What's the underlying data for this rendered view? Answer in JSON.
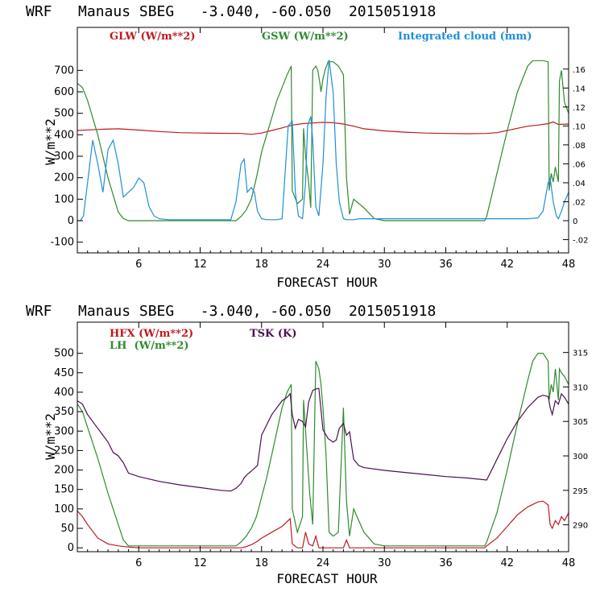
{
  "chart_data": [
    {
      "type": "line",
      "title": "WRF   Manaus SBEG   -3.040, -60.050  2015051918",
      "xlabel": "FORECAST HOUR",
      "ylabel": "W/m**2",
      "xlim": [
        0,
        48
      ],
      "ylim": [
        -150,
        900
      ],
      "y2lim": [
        -0.034,
        0.204
      ],
      "x_ticks": [
        "6",
        "12",
        "18",
        "24",
        "30",
        "36",
        "42",
        "48"
      ],
      "y_ticks": [
        "-100",
        "0",
        "100",
        "200",
        "300",
        "400",
        "500",
        "600",
        "700"
      ],
      "y2_ticks": [
        "-.02",
        "0",
        ".02",
        ".04",
        ".06",
        ".08",
        ".10",
        ".12",
        ".14",
        ".16"
      ],
      "legend": [
        {
          "label": "GLW (W/m**2)",
          "color": "#c0181f"
        },
        {
          "label": "GSW (W/m**2)",
          "color": "#2e8b2e"
        },
        {
          "label": "Integrated cloud (mm)",
          "color": "#1e8fd8"
        }
      ],
      "series": [
        {
          "name": "GLW",
          "axis": "left",
          "color": "#c0181f",
          "x": [
            0,
            2,
            4,
            6,
            8,
            10,
            12,
            14,
            16,
            17,
            18,
            19,
            20,
            21,
            22,
            23,
            24,
            25,
            26,
            27,
            28,
            30,
            32,
            34,
            36,
            38,
            40,
            41,
            42,
            43,
            44,
            45,
            46,
            46.5,
            47,
            48
          ],
          "y": [
            420,
            425,
            428,
            422,
            415,
            410,
            408,
            407,
            406,
            402,
            408,
            420,
            432,
            445,
            452,
            455,
            458,
            456,
            450,
            440,
            428,
            418,
            412,
            408,
            406,
            405,
            406,
            410,
            420,
            430,
            440,
            445,
            452,
            460,
            448,
            450
          ]
        },
        {
          "name": "GSW",
          "axis": "left",
          "color": "#2e8b2e",
          "x": [
            0,
            0.5,
            1,
            2,
            3,
            4,
            4.5,
            5,
            6,
            10,
            15,
            15.5,
            16,
            16.5,
            17,
            17.5,
            18,
            18.5,
            19,
            19.5,
            20,
            20.5,
            20.9,
            21,
            21.5,
            22,
            22.1,
            22.3,
            22.6,
            22.8,
            23,
            23.3,
            23.5,
            23.7,
            23.8,
            24,
            24.2,
            24.5,
            25,
            25.5,
            26,
            26.3,
            26.6,
            27,
            28,
            29,
            30,
            35,
            39.8,
            40,
            41,
            42,
            43,
            44,
            44.5,
            45,
            45.5,
            46,
            46.1,
            46.3,
            46.5,
            46.7,
            47,
            47.1,
            47.3,
            47.6,
            48
          ],
          "y": [
            640,
            620,
            560,
            400,
            200,
            40,
            10,
            0,
            0,
            0,
            0,
            0,
            20,
            50,
            100,
            200,
            320,
            400,
            480,
            560,
            620,
            680,
            720,
            140,
            80,
            100,
            430,
            300,
            180,
            60,
            700,
            720,
            700,
            640,
            600,
            660,
            700,
            740,
            740,
            720,
            680,
            200,
            30,
            100,
            60,
            10,
            0,
            0,
            0,
            20,
            220,
            420,
            600,
            720,
            745,
            745,
            745,
            740,
            140,
            220,
            180,
            250,
            180,
            650,
            700,
            550,
            500
          ]
        },
        {
          "name": "Integrated cloud (mm)",
          "axis": "right",
          "color": "#1e8fd8",
          "x": [
            0,
            0.3,
            0.6,
            1,
            1.5,
            2,
            2.5,
            3,
            3.5,
            4,
            4.5,
            5,
            5.5,
            6,
            6.5,
            7,
            7.5,
            8,
            9,
            10,
            11,
            12,
            13,
            14,
            15,
            15.5,
            16,
            16.3,
            16.6,
            17,
            17.3,
            17.6,
            18,
            18.5,
            19,
            19.5,
            20,
            20.3,
            20.6,
            21,
            21.3,
            21.6,
            22,
            22.3,
            22.5,
            22.8,
            23,
            23.3,
            23.6,
            24,
            24.3,
            24.6,
            25,
            25.3,
            25.6,
            26,
            26.3,
            26.6,
            27,
            27.5,
            28,
            29,
            30,
            32,
            35,
            38,
            40,
            41,
            42,
            43,
            44,
            45,
            45.5,
            46,
            46.2,
            46.5,
            46.8,
            47,
            47.3,
            47.6,
            48
          ],
          "y": [
            0,
            0,
            0.005,
            0.04,
            0.085,
            0.06,
            0.03,
            0.075,
            0.085,
            0.06,
            0.025,
            0.03,
            0.035,
            0.045,
            0.04,
            0.015,
            0.005,
            0.002,
            0.001,
            0.001,
            0.001,
            0.001,
            0.001,
            0.001,
            0.001,
            0.02,
            0.06,
            0.065,
            0.03,
            0.035,
            0.03,
            0.01,
            0.002,
            0.001,
            0.001,
            0.001,
            0.002,
            0.05,
            0.1,
            0.105,
            0.03,
            0.005,
            0.002,
            0.04,
            0.1,
            0.11,
            0.085,
            0.015,
            0.005,
            0.06,
            0.13,
            0.17,
            0.135,
            0.06,
            0.02,
            0.002,
            0.001,
            0.001,
            0.001,
            0.002,
            0.002,
            0.002,
            0.002,
            0.002,
            0.002,
            0.002,
            0.002,
            0.002,
            0.002,
            0.002,
            0.002,
            0.003,
            0.01,
            0.04,
            0.045,
            0.02,
            0.005,
            0.002,
            0.01,
            0.02,
            0.03
          ]
        }
      ]
    },
    {
      "type": "line",
      "title": "WRF   Manaus SBEG   -3.040, -60.050  2015051918",
      "xlabel": "FORECAST HOUR",
      "ylabel": "W/m**2",
      "xlim": [
        0,
        48
      ],
      "ylim": [
        -10,
        580
      ],
      "y2lim": [
        286.1,
        319.4
      ],
      "x_ticks": [
        "6",
        "12",
        "18",
        "24",
        "30",
        "36",
        "42",
        "48"
      ],
      "y_ticks": [
        "0",
        "50",
        "100",
        "150",
        "200",
        "250",
        "300",
        "350",
        "400",
        "450",
        "500"
      ],
      "y2_ticks": [
        "290",
        "295",
        "300",
        "305",
        "310",
        "315"
      ],
      "legend": [
        {
          "label": "HFX (W/m**2)",
          "color": "#c0181f"
        },
        {
          "label": "LH  (W/m**2)",
          "color": "#2e8b2e"
        },
        {
          "label": "TSK (K)",
          "color": "#4b0f4f"
        }
      ],
      "series": [
        {
          "name": "HFX",
          "axis": "left",
          "color": "#c0181f",
          "x": [
            0,
            0.5,
            1,
            2,
            3,
            4,
            5,
            6,
            10,
            15,
            16,
            16.5,
            17,
            17.5,
            18,
            19,
            20,
            20.8,
            21,
            21.5,
            22,
            22.3,
            22.6,
            23,
            23.3,
            23.6,
            24,
            24.5,
            25,
            25.5,
            26,
            26.3,
            26.6,
            27,
            28,
            30,
            35,
            39.8,
            40,
            41,
            42,
            43,
            44,
            45,
            45.5,
            46,
            46.2,
            46.4,
            46.7,
            47,
            47.3,
            47.6,
            48
          ],
          "y": [
            95,
            80,
            60,
            25,
            10,
            5,
            2,
            0,
            0,
            0,
            0,
            3,
            8,
            15,
            25,
            40,
            55,
            75,
            10,
            0,
            0,
            40,
            10,
            5,
            30,
            0,
            0,
            0,
            0,
            0,
            0,
            20,
            0,
            0,
            0,
            0,
            0,
            0,
            5,
            25,
            55,
            85,
            105,
            118,
            120,
            110,
            60,
            50,
            70,
            60,
            80,
            70,
            90
          ]
        },
        {
          "name": "LH",
          "axis": "left",
          "color": "#2e8b2e",
          "x": [
            0,
            0.5,
            1,
            2,
            3,
            4,
            4.5,
            5,
            6,
            10,
            15,
            15.5,
            16,
            16.5,
            17,
            17.5,
            18,
            18.5,
            19,
            19.5,
            20,
            20.5,
            20.9,
            21,
            21.5,
            22,
            22.1,
            22.4,
            22.7,
            23,
            23.3,
            23.6,
            23.8,
            24,
            24.3,
            24.6,
            25,
            25.5,
            26,
            26.3,
            26.6,
            27,
            28,
            29,
            30,
            35,
            39.8,
            40,
            41,
            42,
            43,
            44,
            44.5,
            45,
            45.5,
            46,
            46.1,
            46.3,
            46.5,
            46.7,
            47,
            47.1,
            47.3,
            47.6,
            48
          ],
          "y": [
            370,
            350,
            310,
            230,
            140,
            60,
            20,
            5,
            5,
            5,
            5,
            5,
            15,
            30,
            50,
            80,
            130,
            180,
            240,
            300,
            360,
            400,
            420,
            100,
            40,
            80,
            380,
            260,
            140,
            60,
            480,
            460,
            420,
            360,
            240,
            40,
            30,
            40,
            360,
            120,
            30,
            100,
            40,
            10,
            5,
            5,
            5,
            15,
            90,
            200,
            320,
            430,
            480,
            500,
            500,
            480,
            380,
            420,
            400,
            460,
            380,
            460,
            450,
            440,
            420
          ]
        },
        {
          "name": "TSK",
          "axis": "right",
          "color": "#4b0f4f",
          "x": [
            0,
            0.5,
            1,
            2,
            3,
            3.5,
            4,
            4.5,
            5,
            6,
            8,
            10,
            12,
            14,
            15,
            15.5,
            16,
            16.3,
            16.6,
            17,
            17.3,
            17.6,
            18,
            18.5,
            19,
            19.5,
            20,
            20.5,
            20.8,
            21,
            21.3,
            21.6,
            22,
            22.3,
            22.6,
            23,
            23.3,
            23.6,
            24,
            24.5,
            25,
            25.3,
            25.6,
            26,
            26.3,
            26.6,
            27,
            27.5,
            28,
            30,
            32,
            34,
            36,
            38,
            40,
            41,
            42,
            43,
            44,
            45,
            45.5,
            46,
            46.2,
            46.4,
            46.7,
            47,
            47.3,
            47.6,
            48
          ],
          "y": [
            308,
            307.5,
            306,
            304,
            302,
            300.5,
            300,
            299,
            297.5,
            297,
            296.3,
            295.8,
            295.4,
            295,
            294.9,
            295.3,
            296,
            296.8,
            297.3,
            297.8,
            298.2,
            298.6,
            303,
            304.5,
            306,
            307,
            308,
            308.5,
            309,
            306,
            304,
            305.3,
            305,
            304.2,
            307.8,
            309.5,
            309.7,
            309.8,
            303.8,
            302.5,
            302,
            302.3,
            304,
            304.7,
            303,
            303.5,
            299.5,
            298.6,
            298.3,
            297.9,
            297.6,
            297.3,
            297,
            296.8,
            296.5,
            299.5,
            302.5,
            305,
            307,
            308.5,
            308.8,
            308.6,
            307,
            306,
            308,
            307.5,
            309,
            308.5,
            307.5
          ]
        }
      ]
    }
  ]
}
